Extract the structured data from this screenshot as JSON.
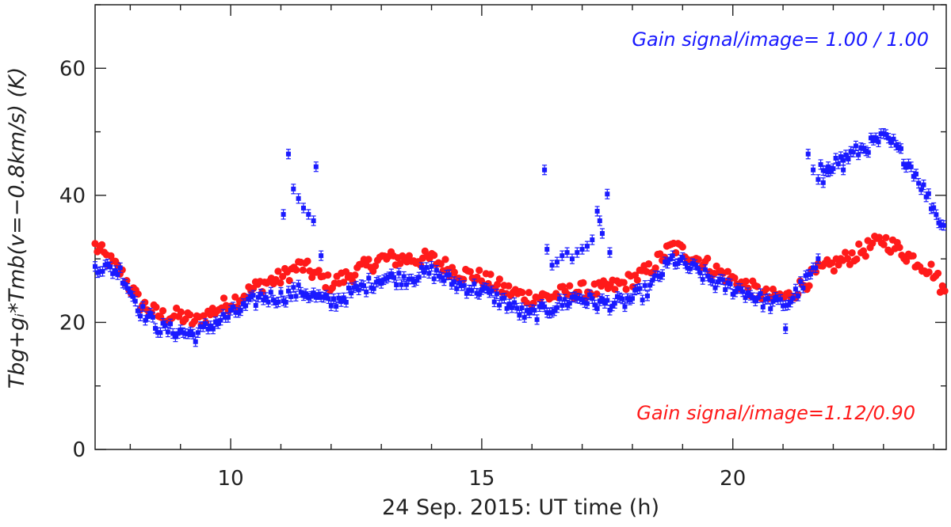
{
  "chart_data": {
    "type": "scatter",
    "xlabel": "24 Sep. 2015: UT time (h)",
    "ylabel": "Tbg+gᵢ*Tmb(v=−0.8km/s) (K)",
    "xlim": [
      7.3,
      24.25
    ],
    "ylim": [
      0,
      70
    ],
    "xticks": [
      10,
      15,
      20
    ],
    "yticks": [
      0,
      20,
      40,
      60
    ],
    "grid": false,
    "series": [
      {
        "name": "Gain signal/image= 1.00 / 1.00",
        "color": "#1a1aff",
        "marker": "square-errorbar",
        "knots": [
          [
            7.3,
            29
          ],
          [
            7.8,
            28
          ],
          [
            8.2,
            22
          ],
          [
            8.6,
            19
          ],
          [
            9.0,
            18.5
          ],
          [
            9.3,
            18
          ],
          [
            9.7,
            20
          ],
          [
            10.2,
            22
          ],
          [
            10.6,
            24
          ],
          [
            11.0,
            24
          ],
          [
            11.4,
            25
          ],
          [
            12.0,
            23
          ],
          [
            12.5,
            25
          ],
          [
            13.0,
            27
          ],
          [
            13.5,
            27
          ],
          [
            14.0,
            28
          ],
          [
            14.5,
            26
          ],
          [
            15.0,
            25
          ],
          [
            15.5,
            23
          ],
          [
            15.9,
            21
          ],
          [
            16.3,
            22
          ],
          [
            16.9,
            24
          ],
          [
            17.3,
            23
          ],
          [
            17.8,
            23
          ],
          [
            18.3,
            25
          ],
          [
            18.8,
            30
          ],
          [
            19.3,
            28
          ],
          [
            19.7,
            26
          ],
          [
            20.2,
            25
          ],
          [
            20.7,
            23
          ],
          [
            21.1,
            23
          ],
          [
            21.4,
            26
          ],
          [
            21.7,
            29
          ],
          [
            21.75,
            44
          ],
          [
            22.0,
            45
          ],
          [
            22.5,
            47
          ],
          [
            23.0,
            49
          ],
          [
            23.2,
            48
          ],
          [
            23.6,
            44
          ],
          [
            24.0,
            38
          ],
          [
            24.25,
            34
          ]
        ],
        "outliers": [
          [
            11.05,
            37
          ],
          [
            11.15,
            46.5
          ],
          [
            11.25,
            41
          ],
          [
            11.35,
            39.5
          ],
          [
            11.45,
            38
          ],
          [
            11.55,
            37
          ],
          [
            11.65,
            36
          ],
          [
            11.7,
            44.5
          ],
          [
            11.8,
            30.5
          ],
          [
            16.25,
            44
          ],
          [
            16.3,
            31.5
          ],
          [
            16.4,
            29
          ],
          [
            16.5,
            29.5
          ],
          [
            16.6,
            30.5
          ],
          [
            16.7,
            31
          ],
          [
            16.8,
            30
          ],
          [
            16.9,
            31
          ],
          [
            17.0,
            31.5
          ],
          [
            17.1,
            32
          ],
          [
            17.2,
            33
          ],
          [
            17.3,
            37.5
          ],
          [
            17.35,
            36
          ],
          [
            17.4,
            34
          ],
          [
            17.5,
            40.2
          ],
          [
            17.55,
            31
          ],
          [
            21.05,
            19
          ],
          [
            21.5,
            46.5
          ],
          [
            21.6,
            44
          ],
          [
            21.7,
            42.5
          ],
          [
            21.8,
            42
          ],
          [
            21.9,
            44.5
          ],
          [
            22.2,
            44
          ]
        ]
      },
      {
        "name": "Gain signal/image=1.12/0.90",
        "color": "#ff1a1a",
        "marker": "circle",
        "knots": [
          [
            7.3,
            32
          ],
          [
            7.8,
            28
          ],
          [
            8.2,
            23
          ],
          [
            8.6,
            21
          ],
          [
            9.0,
            21
          ],
          [
            9.3,
            20
          ],
          [
            9.7,
            22
          ],
          [
            10.2,
            24
          ],
          [
            10.6,
            26
          ],
          [
            11.0,
            27
          ],
          [
            11.4,
            29
          ],
          [
            12.0,
            26
          ],
          [
            12.5,
            28
          ],
          [
            13.0,
            30
          ],
          [
            13.5,
            30
          ],
          [
            14.0,
            30
          ],
          [
            14.5,
            28
          ],
          [
            15.0,
            27
          ],
          [
            15.5,
            25
          ],
          [
            15.9,
            24
          ],
          [
            16.3,
            24
          ],
          [
            16.9,
            25
          ],
          [
            17.3,
            25
          ],
          [
            17.8,
            26
          ],
          [
            18.3,
            28
          ],
          [
            18.8,
            32
          ],
          [
            19.3,
            30
          ],
          [
            19.7,
            28
          ],
          [
            20.2,
            26
          ],
          [
            20.7,
            24
          ],
          [
            21.1,
            24
          ],
          [
            21.4,
            26
          ],
          [
            21.7,
            28
          ],
          [
            22.0,
            29
          ],
          [
            22.5,
            31
          ],
          [
            23.0,
            33
          ],
          [
            23.2,
            32
          ],
          [
            23.6,
            30
          ],
          [
            24.0,
            28
          ],
          [
            24.25,
            24
          ]
        ]
      }
    ],
    "legend": [
      {
        "text": "Gain signal/image= 1.00 / 1.00",
        "color": "#1a1aff",
        "placement": "top-right"
      },
      {
        "text": "Gain signal/image=1.12/0.90",
        "color": "#ff1a1a",
        "placement": "bottom-right"
      }
    ]
  }
}
